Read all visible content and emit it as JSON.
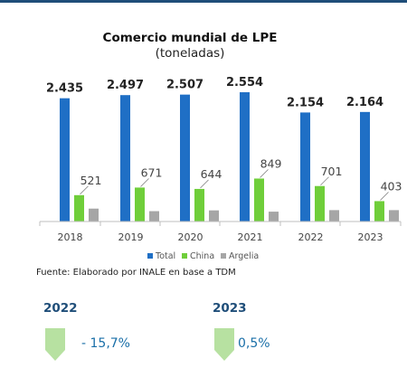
{
  "chart_data": {
    "type": "bar",
    "title": "Comercio mundial de LPE",
    "subtitle": "(toneladas)",
    "categories": [
      "2018",
      "2019",
      "2020",
      "2021",
      "2022",
      "2023"
    ],
    "series": [
      {
        "name": "Total",
        "color": "#1f6fc5",
        "values": [
          2435,
          2497,
          2507,
          2554,
          2154,
          2164
        ],
        "labels": [
          "2.435",
          "2.497",
          "2.507",
          "2.554",
          "2.154",
          "2.164"
        ]
      },
      {
        "name": "China",
        "color": "#6fce3a",
        "values": [
          521,
          671,
          644,
          849,
          701,
          403
        ],
        "labels": [
          "521",
          "671",
          "644",
          "849",
          "701",
          "403"
        ]
      },
      {
        "name": "Argelia",
        "color": "#a6a6a6",
        "values": [
          255,
          205,
          220,
          195,
          225,
          225
        ]
      }
    ],
    "ylim": [
      0,
      2554
    ],
    "legend": "bottom",
    "grid": false
  },
  "source": "Fuente: Elaborado por INALE en base a TDM",
  "changes": [
    {
      "year": "2022",
      "value": "- 15,7%",
      "arrow": "down-arrow-icon",
      "arrow_color": "#b7e1a1"
    },
    {
      "year": "2023",
      "value": "0,5%",
      "arrow": "down-arrow-icon",
      "arrow_color": "#b7e1a1"
    }
  ]
}
